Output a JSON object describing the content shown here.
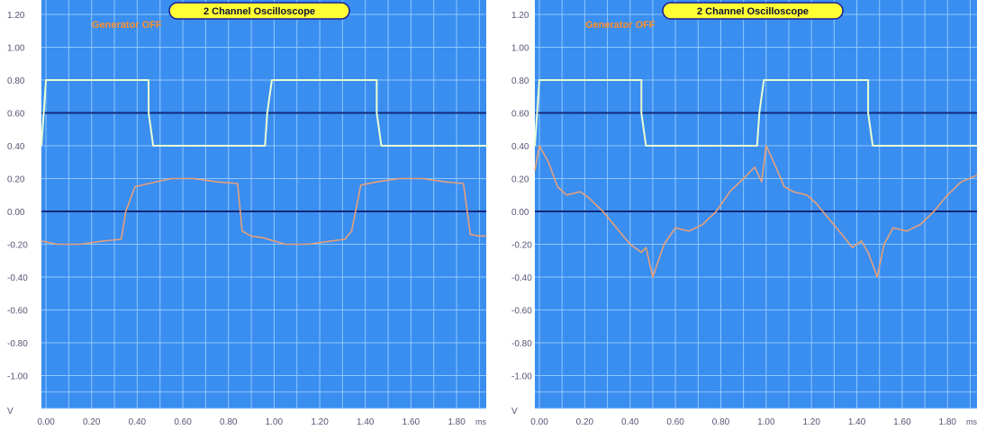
{
  "colors": {
    "plot_bg": "#3a8ef0",
    "grid": "#9fd0ff",
    "zero_line": "#14287a",
    "ch1": "#e9ffd2",
    "ch2": "#e6a07a",
    "title_bg": "#ffff33",
    "title_border": "#1a1a99",
    "status_text": "#ff8f28"
  },
  "charts": [
    {
      "title": "2 Channel Oscilloscope",
      "status": "Generator OFF",
      "x_unit": "ms",
      "y_unit": "V"
    },
    {
      "title": "2 Channel Oscilloscope",
      "status": "Generator OFF",
      "x_unit": "ms",
      "y_unit": "V"
    }
  ],
  "chart_data": [
    {
      "type": "line",
      "title": "2 Channel Oscilloscope",
      "xlabel": "ms",
      "ylabel": "V",
      "xlim": [
        -0.02,
        1.93
      ],
      "ylim": [
        -1.2,
        1.2
      ],
      "x_ticks": [
        "0.00",
        "0.20",
        "0.40",
        "0.60",
        "0.80",
        "1.00",
        "1.20",
        "1.40",
        "1.60",
        "1.80"
      ],
      "y_ticks": [
        "1.20",
        "1.00",
        "0.80",
        "0.60",
        "0.40",
        "0.20",
        "0.00",
        "-0.20",
        "-0.40",
        "-0.60",
        "-0.80",
        "-1.00"
      ],
      "grid": true,
      "series": [
        {
          "x": [
            -0.02,
            0.0,
            0.02,
            0.4499,
            0.45,
            0.47,
            0.96,
            0.97,
            0.99,
            1.4499,
            1.45,
            1.47,
            1.93
          ],
          "y": [
            0.4,
            0.8,
            0.8,
            0.8,
            0.6,
            0.4,
            0.4,
            0.6,
            0.8,
            0.8,
            0.6,
            0.4,
            0.4
          ]
        },
        {
          "x": [
            -0.02,
            0.05,
            0.15,
            0.25,
            0.33,
            0.35,
            0.39,
            0.45,
            0.55,
            0.65,
            0.75,
            0.84,
            0.86,
            0.9,
            0.95,
            1.05,
            1.15,
            1.25,
            1.31,
            1.34,
            1.38,
            1.45,
            1.55,
            1.65,
            1.75,
            1.83,
            1.86,
            1.9,
            1.93
          ],
          "y": [
            -0.18,
            -0.2,
            -0.2,
            -0.18,
            -0.17,
            0.0,
            0.15,
            0.17,
            0.2,
            0.2,
            0.18,
            0.17,
            -0.12,
            -0.15,
            -0.16,
            -0.2,
            -0.2,
            -0.18,
            -0.17,
            -0.12,
            0.16,
            0.18,
            0.2,
            0.2,
            0.18,
            0.17,
            -0.14,
            -0.15,
            -0.15
          ]
        }
      ]
    },
    {
      "type": "line",
      "title": "2 Channel Oscilloscope",
      "xlabel": "ms",
      "ylabel": "V",
      "xlim": [
        -0.02,
        1.93
      ],
      "ylim": [
        -1.2,
        1.2
      ],
      "x_ticks": [
        "0.00",
        "0.20",
        "0.40",
        "0.60",
        "0.80",
        "1.00",
        "1.20",
        "1.40",
        "1.60",
        "1.80"
      ],
      "y_ticks": [
        "1.20",
        "1.00",
        "0.80",
        "0.60",
        "0.40",
        "0.20",
        "0.00",
        "-0.20",
        "-0.40",
        "-0.60",
        "-0.80",
        "-1.00"
      ],
      "grid": true,
      "series": [
        {
          "x": [
            -0.02,
            0.0,
            0.02,
            0.4499,
            0.45,
            0.47,
            0.96,
            0.97,
            0.99,
            1.4499,
            1.45,
            1.47,
            1.93
          ],
          "y": [
            0.4,
            0.8,
            0.8,
            0.8,
            0.6,
            0.4,
            0.4,
            0.6,
            0.8,
            0.8,
            0.6,
            0.4,
            0.4
          ]
        },
        {
          "x": [
            -0.02,
            0.0,
            0.04,
            0.08,
            0.12,
            0.18,
            0.22,
            0.28,
            0.34,
            0.4,
            0.45,
            0.47,
            0.5,
            0.55,
            0.6,
            0.66,
            0.72,
            0.78,
            0.84,
            0.9,
            0.95,
            0.98,
            1.0,
            1.04,
            1.08,
            1.12,
            1.18,
            1.22,
            1.28,
            1.34,
            1.38,
            1.42,
            1.45,
            1.49,
            1.52,
            1.56,
            1.62,
            1.68,
            1.74,
            1.8,
            1.86,
            1.93
          ],
          "y": [
            0.25,
            0.4,
            0.3,
            0.15,
            0.1,
            0.12,
            0.08,
            0.0,
            -0.1,
            -0.2,
            -0.25,
            -0.22,
            -0.4,
            -0.2,
            -0.1,
            -0.12,
            -0.08,
            0.0,
            0.12,
            0.2,
            0.27,
            0.18,
            0.4,
            0.28,
            0.15,
            0.12,
            0.1,
            0.05,
            -0.05,
            -0.15,
            -0.22,
            -0.18,
            -0.25,
            -0.4,
            -0.2,
            -0.1,
            -0.12,
            -0.08,
            0.0,
            0.1,
            0.18,
            0.22
          ]
        }
      ]
    }
  ]
}
